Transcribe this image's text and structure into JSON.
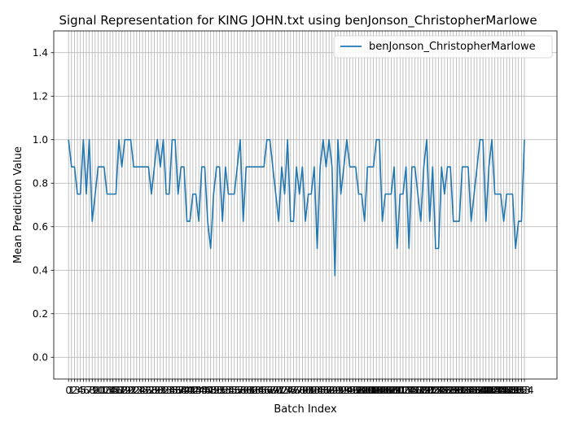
{
  "chart_data": {
    "type": "line",
    "title": "Signal Representation for KING JOHN.txt using benJonson_ChristopherMarlowe",
    "xlabel": "Batch Index",
    "ylabel": "Mean Prediction Value",
    "xlim": [
      -5,
      165
    ],
    "ylim": [
      -0.1,
      1.5
    ],
    "yticks": [
      0.0,
      0.2,
      0.4,
      0.6,
      0.8,
      1.0,
      1.2,
      1.4
    ],
    "grid": true,
    "legend_position": "top-right",
    "series": [
      {
        "name": "benJonson_ChristopherMarlowe",
        "color": "#1f77b4",
        "values": [
          1.0,
          0.875,
          0.875,
          0.75,
          0.75,
          1.0,
          0.75,
          1.0,
          0.625,
          0.75,
          0.875,
          0.875,
          0.875,
          0.75,
          0.75,
          0.75,
          0.75,
          1.0,
          0.875,
          1.0,
          1.0,
          1.0,
          0.875,
          0.875,
          0.875,
          0.875,
          0.875,
          0.875,
          0.75,
          0.875,
          1.0,
          0.875,
          1.0,
          0.75,
          0.75,
          1.0,
          1.0,
          0.75,
          0.875,
          0.875,
          0.625,
          0.625,
          0.75,
          0.75,
          0.625,
          0.875,
          0.875,
          0.625,
          0.5,
          0.75,
          0.875,
          0.875,
          0.625,
          0.875,
          0.75,
          0.75,
          0.75,
          0.875,
          1.0,
          0.625,
          0.875,
          0.875,
          0.875,
          0.875,
          0.875,
          0.875,
          0.875,
          1.0,
          1.0,
          0.875,
          0.75,
          0.625,
          0.875,
          0.75,
          1.0,
          0.625,
          0.625,
          0.875,
          0.75,
          0.875,
          0.625,
          0.75,
          0.75,
          0.875,
          0.5,
          0.875,
          1.0,
          0.875,
          1.0,
          0.875,
          0.375,
          1.0,
          0.75,
          0.875,
          1.0,
          0.875,
          0.875,
          0.875,
          0.75,
          0.75,
          0.625,
          0.875,
          0.875,
          0.875,
          1.0,
          1.0,
          0.625,
          0.75,
          0.75,
          0.75,
          0.875,
          0.5,
          0.75,
          0.75,
          0.875,
          0.5,
          0.875,
          0.875,
          0.75,
          0.625,
          0.875,
          1.0,
          0.625,
          0.875,
          0.5,
          0.5,
          0.875,
          0.75,
          0.875,
          0.875,
          0.625,
          0.625,
          0.625,
          0.875,
          0.875,
          0.875,
          0.625,
          0.75,
          0.875,
          1.0,
          1.0,
          0.625,
          0.875,
          1.0,
          0.75,
          0.75,
          0.75,
          0.625,
          0.75,
          0.75,
          0.75,
          0.5,
          0.625,
          0.625,
          1.0
        ]
      }
    ]
  }
}
